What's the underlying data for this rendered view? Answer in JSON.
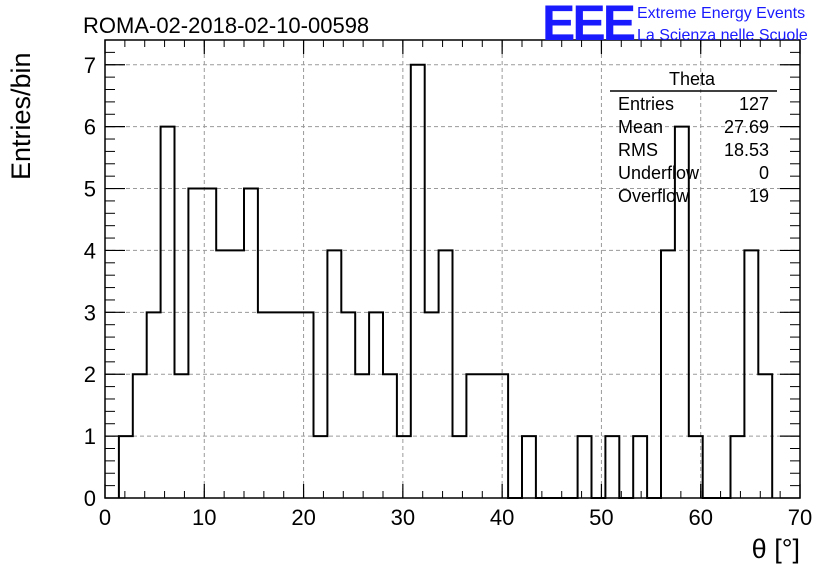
{
  "chart_data": {
    "type": "bar",
    "title": "ROMA-02-2018-02-10-00598",
    "xlabel": "θ [°]",
    "ylabel": "Entries/bin",
    "xlim": [
      0,
      70
    ],
    "ylim": [
      0,
      7.4
    ],
    "xticks": [
      "0",
      "10",
      "20",
      "30",
      "40",
      "50",
      "60",
      "70"
    ],
    "yticks": [
      "0",
      "1",
      "2",
      "3",
      "4",
      "5",
      "6",
      "7"
    ],
    "grid": true,
    "bin_width": 1.4,
    "bins": [
      {
        "x": 1.4,
        "y": 1
      },
      {
        "x": 2.8,
        "y": 2
      },
      {
        "x": 4.2,
        "y": 3
      },
      {
        "x": 5.6,
        "y": 6
      },
      {
        "x": 7.0,
        "y": 2
      },
      {
        "x": 8.4,
        "y": 5
      },
      {
        "x": 9.8,
        "y": 5
      },
      {
        "x": 11.2,
        "y": 4
      },
      {
        "x": 12.6,
        "y": 4
      },
      {
        "x": 14.0,
        "y": 5
      },
      {
        "x": 15.4,
        "y": 3
      },
      {
        "x": 16.8,
        "y": 3
      },
      {
        "x": 18.2,
        "y": 3
      },
      {
        "x": 19.6,
        "y": 3
      },
      {
        "x": 21.0,
        "y": 1
      },
      {
        "x": 22.4,
        "y": 4
      },
      {
        "x": 23.8,
        "y": 3
      },
      {
        "x": 25.2,
        "y": 2
      },
      {
        "x": 26.6,
        "y": 3
      },
      {
        "x": 28.0,
        "y": 2
      },
      {
        "x": 29.4,
        "y": 1
      },
      {
        "x": 30.8,
        "y": 7
      },
      {
        "x": 32.2,
        "y": 3
      },
      {
        "x": 33.6,
        "y": 4
      },
      {
        "x": 35.0,
        "y": 1
      },
      {
        "x": 36.4,
        "y": 2
      },
      {
        "x": 37.8,
        "y": 2
      },
      {
        "x": 39.2,
        "y": 2
      },
      {
        "x": 40.6,
        "y": 0
      },
      {
        "x": 42.0,
        "y": 1
      },
      {
        "x": 43.4,
        "y": 0
      },
      {
        "x": 44.8,
        "y": 0
      },
      {
        "x": 46.2,
        "y": 0
      },
      {
        "x": 47.6,
        "y": 1
      },
      {
        "x": 49.0,
        "y": 0
      },
      {
        "x": 50.4,
        "y": 1
      },
      {
        "x": 51.8,
        "y": 0
      },
      {
        "x": 53.2,
        "y": 1
      },
      {
        "x": 54.6,
        "y": 0
      },
      {
        "x": 56.0,
        "y": 4
      },
      {
        "x": 57.4,
        "y": 6
      },
      {
        "x": 58.8,
        "y": 1
      },
      {
        "x": 60.2,
        "y": 0
      },
      {
        "x": 61.6,
        "y": 0
      },
      {
        "x": 63.0,
        "y": 1
      },
      {
        "x": 64.4,
        "y": 4
      },
      {
        "x": 65.8,
        "y": 2
      }
    ],
    "stats": {
      "title": "Theta",
      "rows": [
        {
          "label": "Entries",
          "value": "127"
        },
        {
          "label": "Mean",
          "value": "27.69"
        },
        {
          "label": "RMS",
          "value": "18.53"
        },
        {
          "label": "Underflow",
          "value": "0"
        },
        {
          "label": "Overflow",
          "value": "19"
        }
      ]
    }
  },
  "logo": {
    "mark": "EEE",
    "line1": "Extreme Energy Events",
    "line2": "La Scienza nelle Scuole"
  },
  "colors": {
    "line": "#000000",
    "grid": "#9a9a9a",
    "logo": "#1a1aff"
  }
}
